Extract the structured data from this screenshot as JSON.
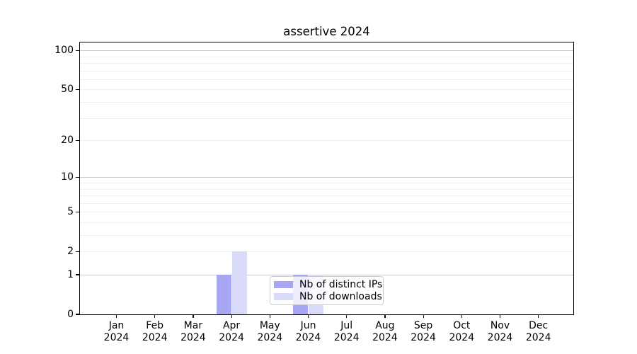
{
  "chart_data": {
    "type": "bar",
    "title": "assertive 2024",
    "categories": [
      "Jan 2024",
      "Feb 2024",
      "Mar 2024",
      "Apr 2024",
      "May 2024",
      "Jun 2024",
      "Jul 2024",
      "Aug 2024",
      "Sep 2024",
      "Oct 2024",
      "Nov 2024",
      "Dec 2024"
    ],
    "series": [
      {
        "name": "Nb of distinct IPs",
        "color": "#a6a6f2",
        "values": [
          0,
          0,
          0,
          1,
          0,
          1,
          0,
          0,
          0,
          0,
          0,
          0
        ]
      },
      {
        "name": "Nb of downloads",
        "color": "#d9d9f8",
        "values": [
          0,
          0,
          0,
          2,
          0,
          1,
          0,
          0,
          0,
          0,
          0,
          0
        ]
      }
    ],
    "yscale": "log1p",
    "yticks": [
      100,
      50,
      20,
      10,
      5,
      2,
      1,
      0
    ],
    "ylim": [
      0,
      115
    ],
    "grid": "horizontal",
    "legend_position": "lower center",
    "colors": {
      "major_gridline": "#c9c9c9",
      "minor_gridline": "#efefef",
      "axis": "#000000",
      "background": "#ffffff"
    }
  }
}
